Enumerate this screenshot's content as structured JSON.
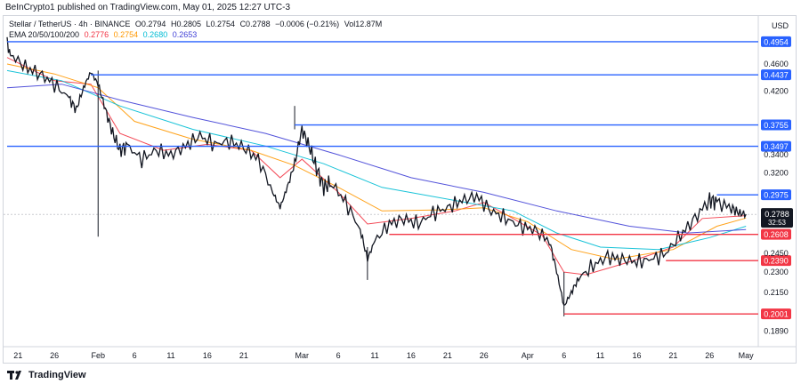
{
  "header": {
    "published": "BeInCrypto1 published on TradingView.com, May 01, 2025 12:27 UTC-3"
  },
  "legend": {
    "symbol": "Stellar / TetherUS · 4h · BINANCE",
    "ohlc": {
      "open": "O0.2794",
      "high": "H0.2805",
      "low": "L0.2754",
      "close": "C0.2788",
      "change": "−0.0006 (−0.21%)",
      "volume": "Vol12.87M"
    },
    "ema_label": "EMA 20/50/100/200",
    "ema_values": [
      "0.2776",
      "0.2754",
      "0.2680",
      "0.2653"
    ]
  },
  "currency": "USD",
  "footer": {
    "brand": "TradingView"
  },
  "colors": {
    "ema20": "#f23645",
    "ema50": "#ff9800",
    "ema100": "#00bcd4",
    "ema200": "#3f3fd6",
    "resistance": "#2962ff",
    "support": "#f23645",
    "candle": "#131722"
  },
  "chart_data": {
    "type": "candlestick",
    "title": "",
    "xlabel": "",
    "ylabel": "",
    "y_scale": "log",
    "ylim": [
      0.1805,
      0.5333
    ],
    "grid": false,
    "x_ticks": [
      {
        "label": "21",
        "x": 0.0
      },
      {
        "label": "26",
        "x": 5.0
      },
      {
        "label": "Feb",
        "x": 11.0
      },
      {
        "label": "6",
        "x": 16.0
      },
      {
        "label": "11",
        "x": 21.0
      },
      {
        "label": "16",
        "x": 26.0
      },
      {
        "label": "21",
        "x": 31.0
      },
      {
        "label": "Mar",
        "x": 39.0
      },
      {
        "label": "6",
        "x": 44.0
      },
      {
        "label": "11",
        "x": 49.0
      },
      {
        "label": "16",
        "x": 54.0
      },
      {
        "label": "21",
        "x": 59.0
      },
      {
        "label": "26",
        "x": 64.0
      },
      {
        "label": "Apr",
        "x": 70.0
      },
      {
        "label": "6",
        "x": 75.0
      },
      {
        "label": "11",
        "x": 80.0
      },
      {
        "label": "16",
        "x": 85.0
      },
      {
        "label": "21",
        "x": 90.0
      },
      {
        "label": "26",
        "x": 95.0
      },
      {
        "label": "May",
        "x": 100.0
      }
    ],
    "y_ticks": [
      "0.4600",
      "0.4200",
      "0.3400",
      "0.3200",
      "0.2450",
      "0.2300",
      "0.2150",
      "0.1890"
    ],
    "price_path": [
      [
        -1.5,
        0.49
      ],
      [
        -1,
        0.475
      ],
      [
        1,
        0.455
      ],
      [
        3,
        0.445
      ],
      [
        5,
        0.43
      ],
      [
        7,
        0.41
      ],
      [
        8,
        0.395
      ],
      [
        9,
        0.425
      ],
      [
        10,
        0.448
      ],
      [
        11,
        0.43
      ],
      [
        12,
        0.395
      ],
      [
        13,
        0.365
      ],
      [
        14,
        0.345
      ],
      [
        15,
        0.35
      ],
      [
        17,
        0.335
      ],
      [
        19,
        0.345
      ],
      [
        21,
        0.34
      ],
      [
        23,
        0.35
      ],
      [
        25,
        0.362
      ],
      [
        27,
        0.352
      ],
      [
        29,
        0.356
      ],
      [
        31,
        0.348
      ],
      [
        33,
        0.335
      ],
      [
        35,
        0.3
      ],
      [
        36,
        0.285
      ],
      [
        37,
        0.305
      ],
      [
        38,
        0.33
      ],
      [
        39,
        0.37
      ],
      [
        40,
        0.35
      ],
      [
        41,
        0.325
      ],
      [
        42,
        0.305
      ],
      [
        43,
        0.31
      ],
      [
        45,
        0.29
      ],
      [
        47,
        0.265
      ],
      [
        48,
        0.24
      ],
      [
        49,
        0.255
      ],
      [
        51,
        0.27
      ],
      [
        53,
        0.275
      ],
      [
        55,
        0.27
      ],
      [
        57,
        0.28
      ],
      [
        59,
        0.285
      ],
      [
        61,
        0.292
      ],
      [
        63,
        0.296
      ],
      [
        65,
        0.282
      ],
      [
        67,
        0.275
      ],
      [
        69,
        0.268
      ],
      [
        71,
        0.265
      ],
      [
        73,
        0.255
      ],
      [
        74,
        0.23
      ],
      [
        75,
        0.205
      ],
      [
        76,
        0.215
      ],
      [
        77,
        0.225
      ],
      [
        79,
        0.235
      ],
      [
        81,
        0.242
      ],
      [
        83,
        0.24
      ],
      [
        85,
        0.238
      ],
      [
        87,
        0.24
      ],
      [
        89,
        0.245
      ],
      [
        91,
        0.26
      ],
      [
        93,
        0.275
      ],
      [
        95,
        0.293
      ],
      [
        96,
        0.29
      ],
      [
        98,
        0.285
      ],
      [
        99,
        0.28
      ],
      [
        100,
        0.279
      ]
    ],
    "wicks": [
      [
        11.0,
        0.2588,
        0.45
      ],
      [
        38.0,
        0.37,
        0.4
      ],
      [
        48.0,
        0.2241,
        0.25
      ],
      [
        75.0,
        0.1985,
        0.23
      ]
    ],
    "series": [
      {
        "name": "EMA 20",
        "points": [
          [
            -1.5,
            0.47
          ],
          [
            5,
            0.435
          ],
          [
            10,
            0.43
          ],
          [
            14,
            0.365
          ],
          [
            20,
            0.345
          ],
          [
            26,
            0.352
          ],
          [
            32,
            0.345
          ],
          [
            36,
            0.315
          ],
          [
            39,
            0.335
          ],
          [
            44,
            0.3
          ],
          [
            48,
            0.27
          ],
          [
            54,
            0.275
          ],
          [
            60,
            0.282
          ],
          [
            64,
            0.29
          ],
          [
            68,
            0.275
          ],
          [
            72,
            0.26
          ],
          [
            75,
            0.23
          ],
          [
            78,
            0.228
          ],
          [
            84,
            0.238
          ],
          [
            90,
            0.25
          ],
          [
            94,
            0.275
          ],
          [
            100,
            0.2776
          ]
        ]
      },
      {
        "name": "EMA 50",
        "points": [
          [
            -1.5,
            0.46
          ],
          [
            5,
            0.445
          ],
          [
            11,
            0.425
          ],
          [
            16,
            0.38
          ],
          [
            24,
            0.358
          ],
          [
            32,
            0.345
          ],
          [
            38,
            0.328
          ],
          [
            44,
            0.305
          ],
          [
            50,
            0.282
          ],
          [
            58,
            0.283
          ],
          [
            64,
            0.285
          ],
          [
            70,
            0.272
          ],
          [
            76,
            0.248
          ],
          [
            82,
            0.24
          ],
          [
            90,
            0.248
          ],
          [
            96,
            0.268
          ],
          [
            100,
            0.2754
          ]
        ]
      },
      {
        "name": "EMA 100",
        "points": [
          [
            -1.5,
            0.45
          ],
          [
            6,
            0.435
          ],
          [
            14,
            0.4
          ],
          [
            24,
            0.37
          ],
          [
            34,
            0.35
          ],
          [
            42,
            0.33
          ],
          [
            50,
            0.305
          ],
          [
            60,
            0.292
          ],
          [
            68,
            0.282
          ],
          [
            74,
            0.262
          ],
          [
            80,
            0.25
          ],
          [
            88,
            0.248
          ],
          [
            95,
            0.258
          ],
          [
            100,
            0.268
          ]
        ]
      },
      {
        "name": "EMA 200",
        "points": [
          [
            -1.5,
            0.425
          ],
          [
            6,
            0.43
          ],
          [
            14,
            0.408
          ],
          [
            24,
            0.385
          ],
          [
            34,
            0.365
          ],
          [
            44,
            0.34
          ],
          [
            54,
            0.315
          ],
          [
            64,
            0.3
          ],
          [
            74,
            0.282
          ],
          [
            84,
            0.268
          ],
          [
            92,
            0.262
          ],
          [
            100,
            0.265
          ]
        ]
      }
    ],
    "levels": [
      {
        "label": "0.4954",
        "value": 0.4954,
        "x_start": -1.5,
        "kind": "resistance"
      },
      {
        "label": "0.4437",
        "value": 0.4437,
        "x_start": 10.0,
        "kind": "resistance"
      },
      {
        "label": "0.3755",
        "value": 0.3755,
        "x_start": 38.0,
        "kind": "resistance"
      },
      {
        "label": "0.3497",
        "value": 0.3497,
        "x_start": -1.5,
        "kind": "resistance"
      },
      {
        "label": "0.2975",
        "value": 0.2975,
        "x_start": 96.0,
        "kind": "resistance"
      },
      {
        "label": "0.2608",
        "value": 0.2608,
        "x_start": 51.0,
        "kind": "support"
      },
      {
        "label": "0.2390",
        "value": 0.239,
        "x_start": 89.0,
        "kind": "support"
      },
      {
        "label": "0.2001",
        "value": 0.2001,
        "x_start": 75.0,
        "kind": "support"
      }
    ],
    "last_price": {
      "label": "0.2788",
      "value": 0.2788,
      "countdown": "32:53"
    }
  }
}
